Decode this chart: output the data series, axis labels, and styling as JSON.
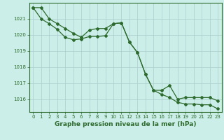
{
  "line1_x": [
    0,
    1,
    2,
    3,
    4,
    5,
    6,
    7,
    8,
    9,
    10,
    11,
    12,
    13,
    14,
    15,
    16,
    17,
    18,
    19,
    20,
    21,
    22,
    23
  ],
  "line1_y": [
    1021.7,
    1021.7,
    1021.0,
    1020.7,
    1020.4,
    1020.1,
    1019.85,
    1020.3,
    1020.4,
    1020.4,
    1020.7,
    1020.75,
    1019.55,
    1018.9,
    1017.55,
    1016.55,
    1016.3,
    1016.1,
    1015.8,
    1015.7,
    1015.7,
    1015.65,
    1015.65,
    1015.4
  ],
  "line2_x": [
    0,
    1,
    2,
    3,
    4,
    5,
    6,
    7,
    8,
    9,
    10,
    11,
    12,
    13,
    14,
    15,
    16,
    17,
    18,
    19,
    20,
    21,
    22,
    23
  ],
  "line2_y": [
    1021.7,
    1021.0,
    1020.7,
    1020.35,
    1019.85,
    1019.7,
    1019.75,
    1019.9,
    1019.9,
    1019.95,
    1020.7,
    1020.75,
    1019.55,
    1018.9,
    1017.55,
    1016.55,
    1016.55,
    1016.85,
    1016.0,
    1016.1,
    1016.1,
    1016.1,
    1016.1,
    1015.9
  ],
  "line_color": "#2d6a2d",
  "bg_color": "#cceee8",
  "grid_color": "#aacccc",
  "xlabel": "Graphe pression niveau de la mer (hPa)",
  "ylim": [
    1015.2,
    1022.0
  ],
  "xlim": [
    -0.5,
    23.5
  ],
  "yticks": [
    1016,
    1017,
    1018,
    1019,
    1020,
    1021
  ],
  "xticks": [
    0,
    1,
    2,
    3,
    4,
    5,
    6,
    7,
    8,
    9,
    10,
    11,
    12,
    13,
    14,
    15,
    16,
    17,
    18,
    19,
    20,
    21,
    22,
    23
  ],
  "xtick_labels": [
    "0",
    "1",
    "2",
    "3",
    "4",
    "5",
    "6",
    "7",
    "8",
    "9",
    "10",
    "11",
    "12",
    "13",
    "14",
    "15",
    "16",
    "17",
    "18",
    "19",
    "20",
    "21",
    "22",
    "23"
  ]
}
